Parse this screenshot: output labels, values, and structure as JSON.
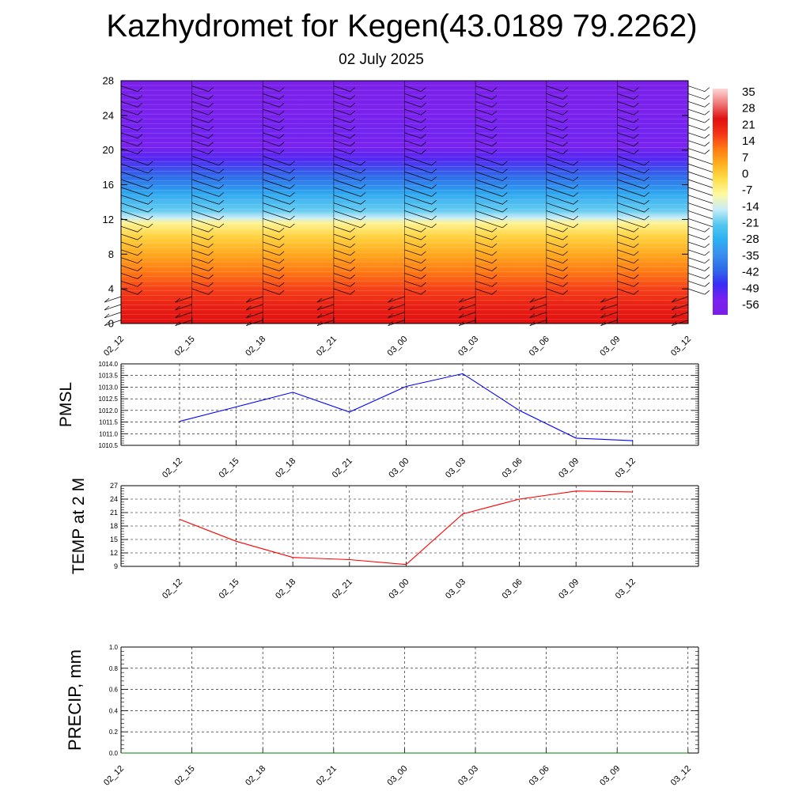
{
  "title": "Kazhydromet for Kegen(43.0189 79.2262)",
  "subtitle": "02 July 2025",
  "chart_data": [
    {
      "type": "heatmap",
      "name": "upper-air temperature cross-section with wind barbs",
      "x_ticks": [
        "02_12",
        "02_15",
        "02_18",
        "02_21",
        "03_00",
        "03_03",
        "03_06",
        "03_09",
        "03_12"
      ],
      "y_ticks": [
        0,
        4,
        8,
        12,
        16,
        20,
        24,
        28
      ],
      "ylim": [
        0,
        28
      ],
      "colorbar_labels": [
        35,
        28,
        21,
        14,
        7,
        0,
        -7,
        -14,
        -21,
        -28,
        -35,
        -42,
        -49,
        -56
      ],
      "temperature_profile_by_level": [
        {
          "y": 0,
          "value": 28
        },
        {
          "y": 2,
          "value": 25
        },
        {
          "y": 4,
          "value": 20
        },
        {
          "y": 6,
          "value": 14
        },
        {
          "y": 8,
          "value": 8
        },
        {
          "y": 10,
          "value": 2
        },
        {
          "y": 11.6,
          "value": -6
        },
        {
          "y": 12.2,
          "value": -14
        },
        {
          "y": 13,
          "value": -20
        },
        {
          "y": 15,
          "value": -30
        },
        {
          "y": 17,
          "value": -42
        },
        {
          "y": 19,
          "value": -52
        },
        {
          "y": 20.5,
          "value": -58
        },
        {
          "y": 22,
          "value": -55
        },
        {
          "y": 24,
          "value": -58
        },
        {
          "y": 28,
          "value": -60
        }
      ],
      "grid": false
    },
    {
      "type": "line",
      "ylabel": "PMSL",
      "categories": [
        "02_12",
        "02_15",
        "02_18",
        "02_21",
        "03_00",
        "03_03",
        "03_06",
        "03_09",
        "03_12"
      ],
      "values": [
        1011.53,
        1012.15,
        1012.78,
        1011.93,
        1013.03,
        1013.58,
        1012.0,
        1010.81,
        1010.7
      ],
      "ylim": [
        1010.5,
        1014.0
      ],
      "y_ticks": [
        "1010.5",
        "1011.0",
        "1011.5",
        "1012.0",
        "1012.5",
        "1013.0",
        "1013.5",
        "1014.0"
      ],
      "color": "#0000ff",
      "grid": true
    },
    {
      "type": "line",
      "ylabel": "TEMP at 2 M",
      "categories": [
        "02_12",
        "02_15",
        "02_18",
        "02_21",
        "03_00",
        "03_03",
        "03_06",
        "03_09",
        "03_12"
      ],
      "values": [
        19.5,
        14.6,
        11.0,
        10.5,
        9.4,
        20.7,
        24.0,
        25.8,
        25.6
      ],
      "ylim": [
        9,
        27
      ],
      "y_ticks": [
        "9",
        "12",
        "15",
        "18",
        "21",
        "24",
        "27"
      ],
      "color": "#ff0000",
      "grid": true
    },
    {
      "type": "line",
      "ylabel": "PRECIP, mm",
      "x_ticks": [
        "02_12",
        "02_15",
        "02_18",
        "02_21",
        "03_00",
        "03_03",
        "03_06",
        "03_09",
        "03_12"
      ],
      "values": [
        0,
        0,
        0,
        0,
        0,
        0,
        0,
        0,
        0
      ],
      "ylim": [
        0,
        1.0
      ],
      "y_ticks": [
        "0.0",
        "0.2",
        "0.4",
        "0.6",
        "0.8",
        "1.0"
      ],
      "color": "#008000",
      "grid": true
    }
  ]
}
